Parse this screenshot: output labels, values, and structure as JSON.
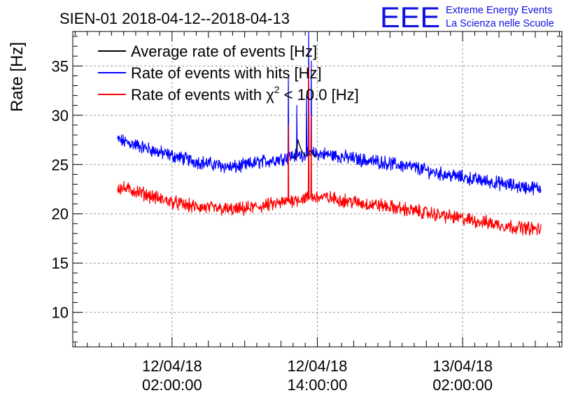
{
  "chart_data": {
    "type": "line",
    "title": "SIEN-01 2018-04-12--2018-04-13",
    "ylabel": "Rate [Hz]",
    "xlabel": "",
    "ylim": [
      6.5,
      38.5
    ],
    "xlim_hours": [
      -6.2,
      34.2
    ],
    "y_ticks": [
      10,
      15,
      20,
      25,
      30,
      35
    ],
    "x_ticks": [
      {
        "hour": 2,
        "line1": "12/04/18",
        "line2": "02:00:00"
      },
      {
        "hour": 14,
        "line1": "12/04/18",
        "line2": "14:00:00"
      },
      {
        "hour": 26,
        "line1": "13/04/18",
        "line2": "02:00:00"
      }
    ],
    "grid": true,
    "legend": {
      "position": "top-left",
      "entries": [
        {
          "label": "Average rate of events [Hz]",
          "color": "#000000"
        },
        {
          "label": "Rate of events with hits [Hz]",
          "color": "#0000ff"
        },
        {
          "label_prefix": "Rate of events with ",
          "chi": "χ",
          "sup": "2",
          "label_suffix": " < 10.0 [Hz]",
          "color": "#ff0000"
        }
      ]
    },
    "logo": {
      "mark": "EEE",
      "line1": "Extreme Energy Events",
      "line2": "La Scienza nelle Scuole",
      "color": "#1010e0"
    },
    "series": [
      {
        "name": "Average rate of events [Hz]",
        "color": "#000000",
        "x_hours": [
          12.2,
          12.4,
          12.6,
          12.8,
          13.0,
          13.2,
          13.4,
          13.6,
          13.8,
          14.0
        ],
        "values": [
          25.5,
          27.5,
          26.7,
          26.2,
          25.9,
          26.0,
          26.4,
          26.1,
          25.8,
          26.0
        ]
      },
      {
        "name": "Rate of events with hits [Hz]",
        "color": "#0000ff",
        "x_hours": [
          -2.5,
          -1,
          0,
          1,
          2,
          3,
          4,
          5,
          6,
          7,
          8,
          9,
          10,
          11,
          12,
          13,
          14,
          15,
          16,
          17,
          18,
          19,
          20,
          21,
          22,
          23,
          24,
          25,
          26,
          27,
          28,
          29,
          30,
          31,
          32.5
        ],
        "values": [
          27.5,
          27.0,
          26.6,
          26.2,
          25.9,
          25.6,
          25.3,
          25.1,
          24.9,
          24.7,
          24.9,
          25.2,
          25.4,
          25.6,
          25.9,
          26.0,
          26.1,
          26.0,
          25.8,
          25.6,
          25.4,
          25.3,
          25.1,
          24.9,
          24.7,
          24.4,
          24.1,
          23.9,
          23.7,
          23.5,
          23.3,
          23.1,
          22.9,
          22.7,
          22.6
        ],
        "spikes": [
          {
            "hour": 11.6,
            "value": 34.0
          },
          {
            "hour": 12.3,
            "value": 31.0
          },
          {
            "hour": 13.1,
            "value": 32.0
          },
          {
            "hour": 13.3,
            "value": 38.5
          },
          {
            "hour": 13.5,
            "value": 35.5
          }
        ],
        "noise": 0.55
      },
      {
        "name": "Rate of events with χ² < 10.0 [Hz]",
        "color": "#ff0000",
        "x_hours": [
          -2.5,
          -1,
          0,
          1,
          2,
          3,
          4,
          5,
          6,
          7,
          8,
          9,
          10,
          11,
          12,
          13,
          14,
          15,
          16,
          17,
          18,
          19,
          20,
          21,
          22,
          23,
          24,
          25,
          26,
          27,
          28,
          29,
          30,
          31,
          32.5
        ],
        "values": [
          22.7,
          22.3,
          21.9,
          21.5,
          21.2,
          20.9,
          20.7,
          20.6,
          20.5,
          20.4,
          20.5,
          20.7,
          20.9,
          21.1,
          21.4,
          21.6,
          21.7,
          21.6,
          21.4,
          21.2,
          21.0,
          20.9,
          20.7,
          20.5,
          20.3,
          20.1,
          19.9,
          19.7,
          19.5,
          19.3,
          19.1,
          18.9,
          18.7,
          18.6,
          18.4
        ],
        "spikes": [
          {
            "hour": 11.6,
            "value": 29.0
          },
          {
            "hour": 13.3,
            "value": 35.0
          },
          {
            "hour": 13.5,
            "value": 30.0
          }
        ],
        "noise": 0.55
      }
    ]
  }
}
